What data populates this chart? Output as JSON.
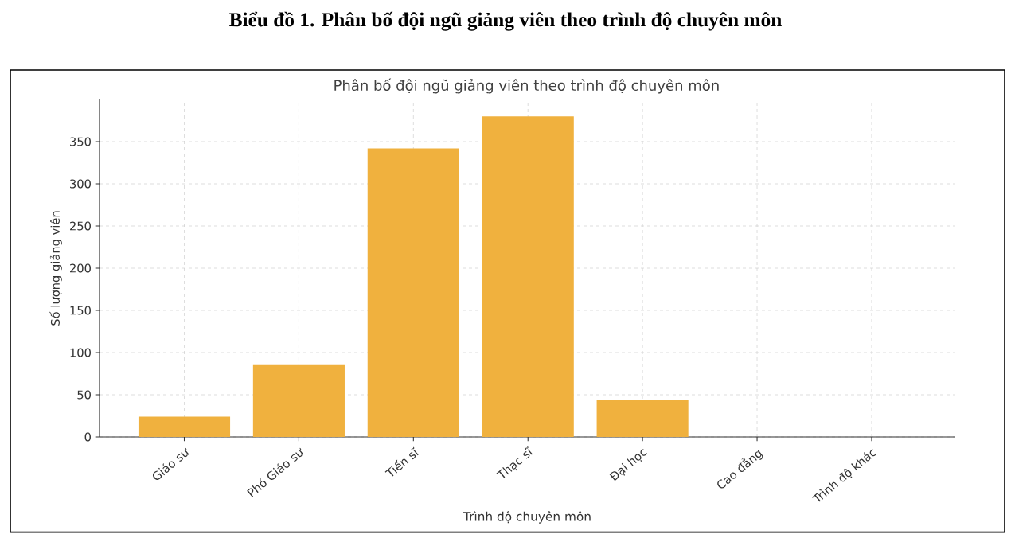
{
  "chart_data": {
    "type": "bar",
    "title": "Biểu đồ 1. Phân bố đội ngũ giảng viên theo trình độ chuyên môn",
    "subtitle": "Phân bố đội ngũ giảng viên theo trình độ chuyên môn",
    "xlabel": "Trình độ chuyên môn",
    "ylabel": "Số lượng giảng viên",
    "categories": [
      "Giáo sư",
      "Phó Giáo sư",
      "Tiến sĩ",
      "Thạc sĩ",
      "Đại học",
      "Cao đẳng",
      "Trình độ khác"
    ],
    "values": [
      24,
      86,
      342,
      380,
      44,
      0,
      0
    ],
    "color": "#f0b13e",
    "ylim": [
      0,
      400
    ],
    "yticks": [
      0,
      50,
      100,
      150,
      200,
      250,
      300,
      350
    ],
    "grid": true
  }
}
